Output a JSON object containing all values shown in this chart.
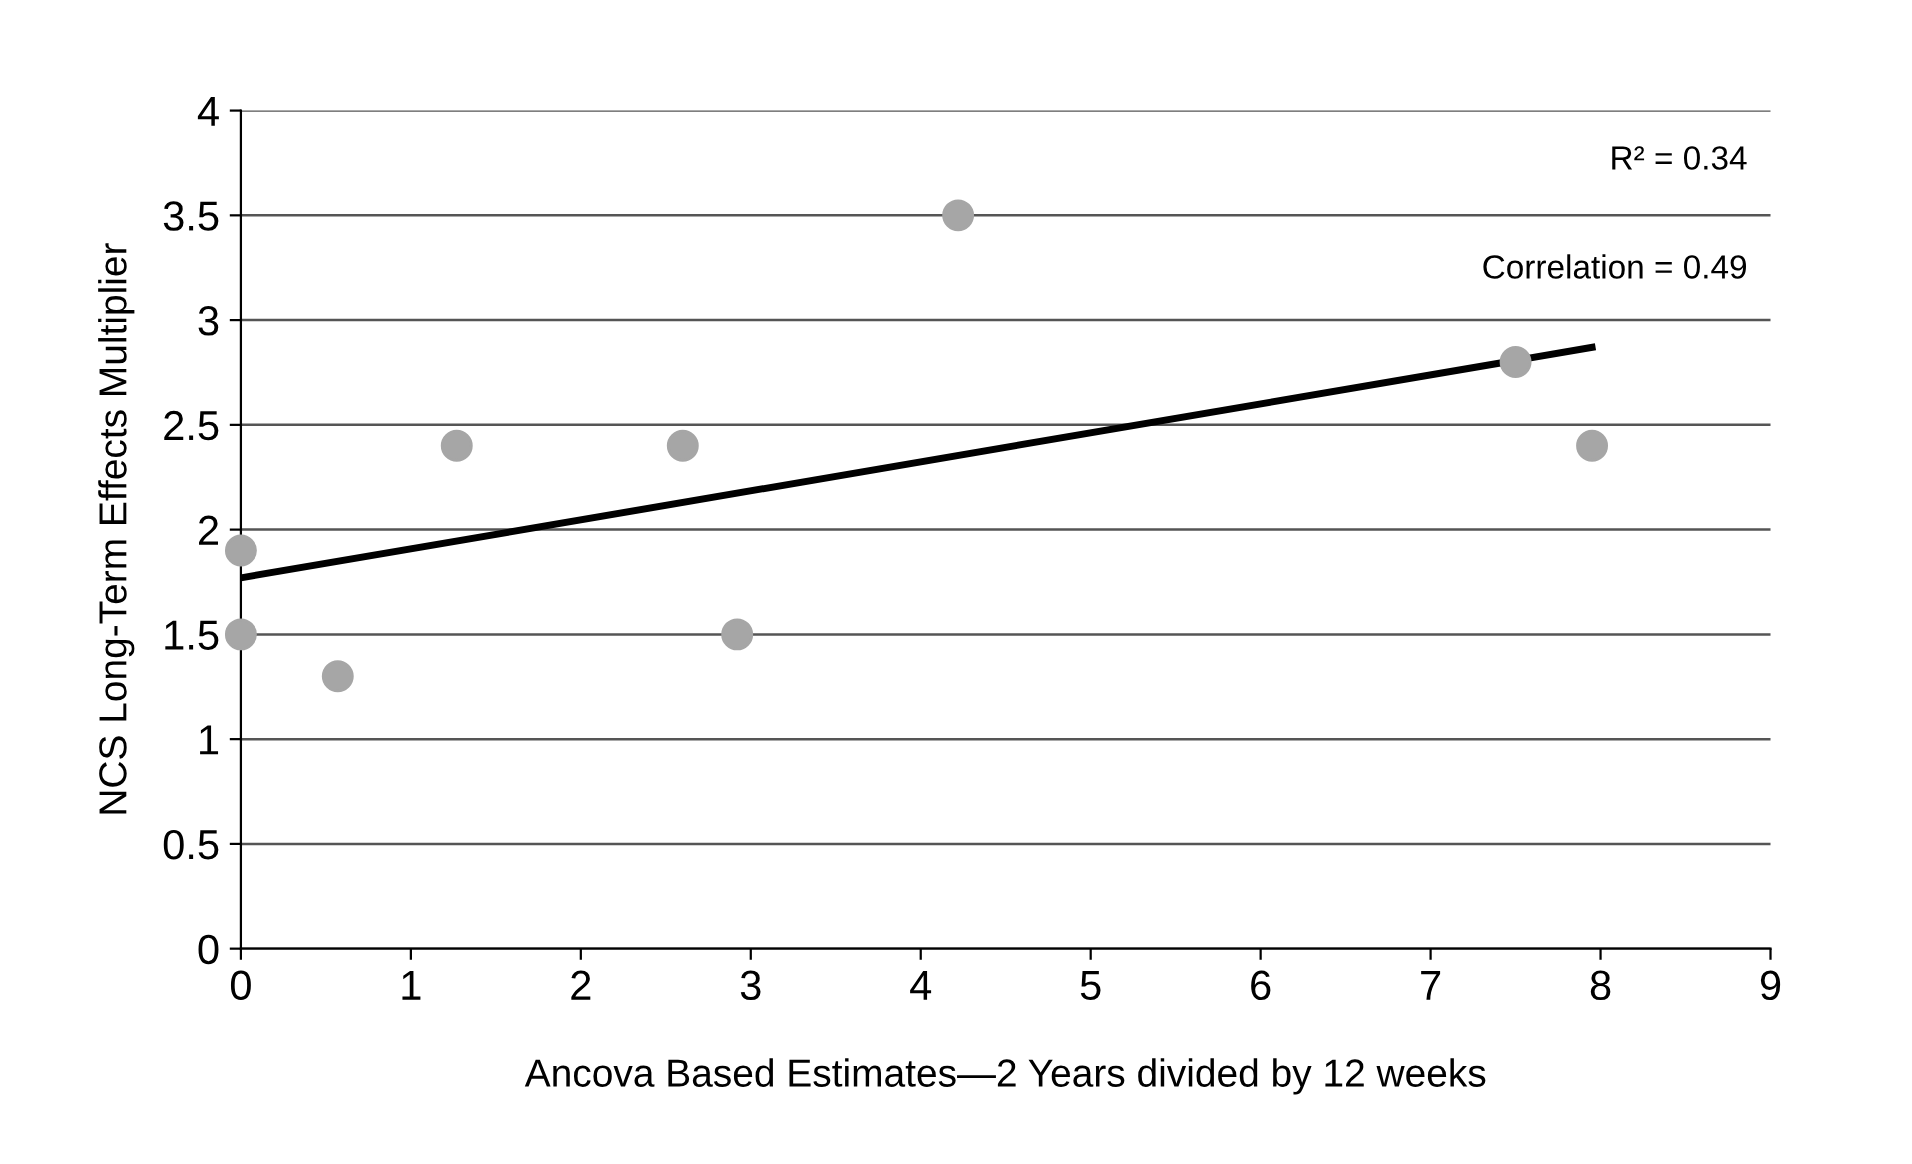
{
  "chart_data": {
    "type": "scatter",
    "xlabel": "Ancova Based Estimates—2 Years divided by 12 weeks",
    "ylabel": "NCS Long-Term Effects Multiplier",
    "series": [
      {
        "color": "#a6a6a6",
        "marker": "circle",
        "x": [
          0,
          0,
          0.57,
          1.27,
          2.6,
          2.92,
          4.22,
          7.5,
          7.95
        ],
        "values": [
          1.9,
          1.5,
          1.3,
          2.4,
          2.4,
          1.5,
          3.5,
          2.8,
          2.4
        ]
      },
      {
        "type": "line",
        "color": "#000000",
        "marker": "none",
        "x": [
          0,
          7.95
        ],
        "values": [
          1.77,
          2.87
        ]
      }
    ],
    "annotations": [
      "R² = 0.34",
      "Correlation = 0.49"
    ],
    "xlim": [
      0,
      9
    ],
    "xticks": [
      0,
      1,
      2,
      3,
      4,
      5,
      6,
      7,
      8,
      9
    ],
    "ylim": [
      0,
      4
    ],
    "yticks": [
      0,
      0.5,
      1,
      1.5,
      2,
      2.5,
      3,
      3.5,
      4
    ],
    "grid": "y",
    "legend": false
  }
}
